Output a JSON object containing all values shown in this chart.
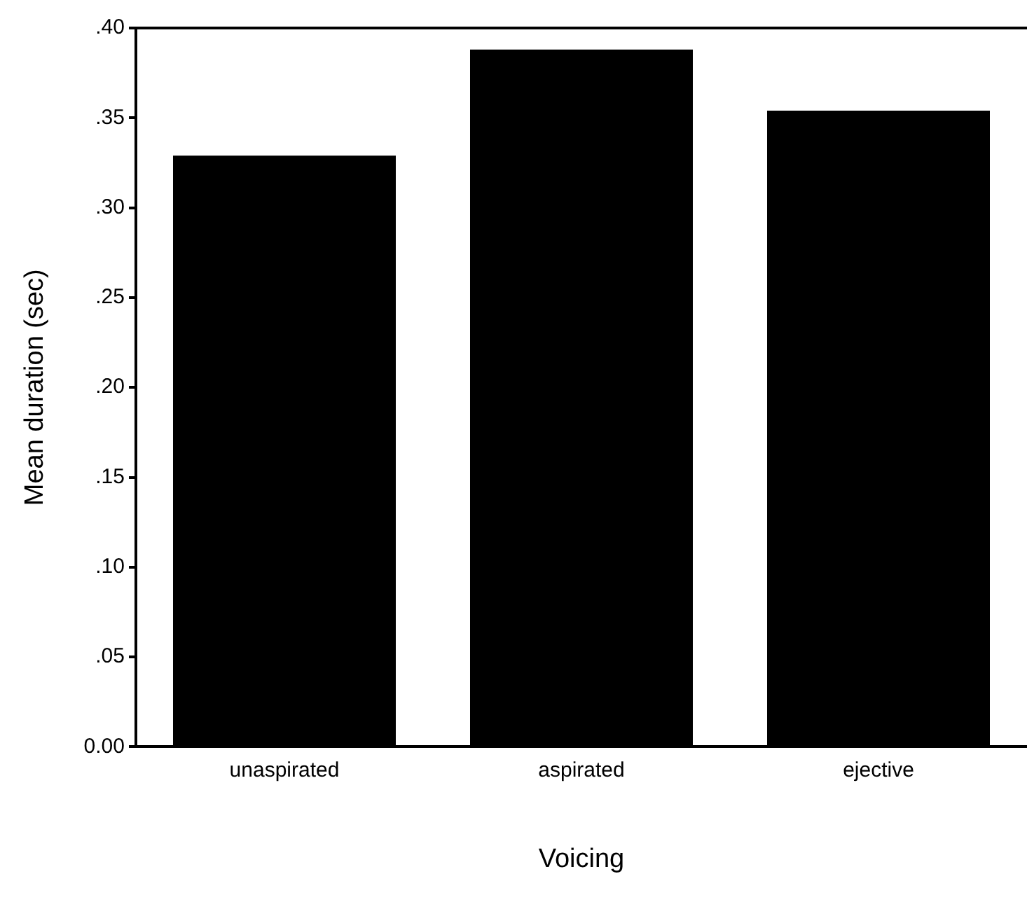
{
  "chart_data": {
    "type": "bar",
    "xlabel": "Voicing",
    "ylabel": "Mean duration (sec)",
    "categories": [
      "unaspirated",
      "aspirated",
      "ejective"
    ],
    "values": [
      0.329,
      0.388,
      0.354
    ],
    "color": "#000000",
    "ylim": [
      0,
      0.4
    ],
    "yticks": [
      {
        "value": 0,
        "label": "0.00"
      },
      {
        "value": 0.05,
        "label": ".05"
      },
      {
        "value": 0.1,
        "label": ".10"
      },
      {
        "value": 0.15,
        "label": ".15"
      },
      {
        "value": 0.2,
        "label": ".20"
      },
      {
        "value": 0.25,
        "label": ".25"
      },
      {
        "value": 0.3,
        "label": ".30"
      },
      {
        "value": 0.35,
        "label": ".35"
      },
      {
        "value": 0.4,
        "label": ".40"
      }
    ],
    "grid": false,
    "legend": false
  }
}
